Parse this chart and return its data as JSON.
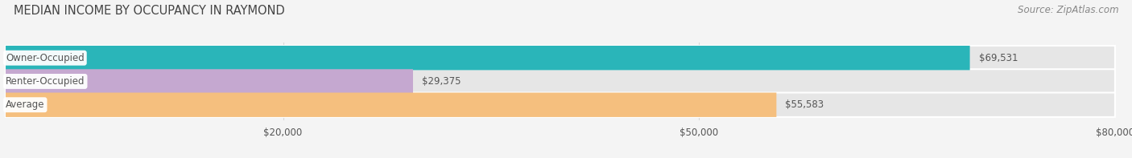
{
  "title": "MEDIAN INCOME BY OCCUPANCY IN RAYMOND",
  "source": "Source: ZipAtlas.com",
  "categories": [
    "Owner-Occupied",
    "Renter-Occupied",
    "Average"
  ],
  "values": [
    69531,
    29375,
    55583
  ],
  "bar_colors": [
    "#2ab5b9",
    "#c5a8d0",
    "#f5bf7e"
  ],
  "label_texts": [
    "$69,531",
    "$29,375",
    "$55,583"
  ],
  "xlim": [
    0,
    80000
  ],
  "xticks": [
    20000,
    50000,
    80000
  ],
  "xticklabels": [
    "$20,000",
    "$50,000",
    "$80,000"
  ],
  "bar_height": 0.52,
  "background_color": "#f4f4f4",
  "bar_bg_color": "#e6e6e6",
  "title_fontsize": 10.5,
  "source_fontsize": 8.5,
  "value_fontsize": 8.5,
  "cat_fontsize": 8.5,
  "tick_fontsize": 8.5,
  "bar_edge_color": "#ffffff",
  "text_color": "#555555",
  "title_color": "#444444",
  "source_color": "#888888",
  "grid_color": "#d8d8d8"
}
